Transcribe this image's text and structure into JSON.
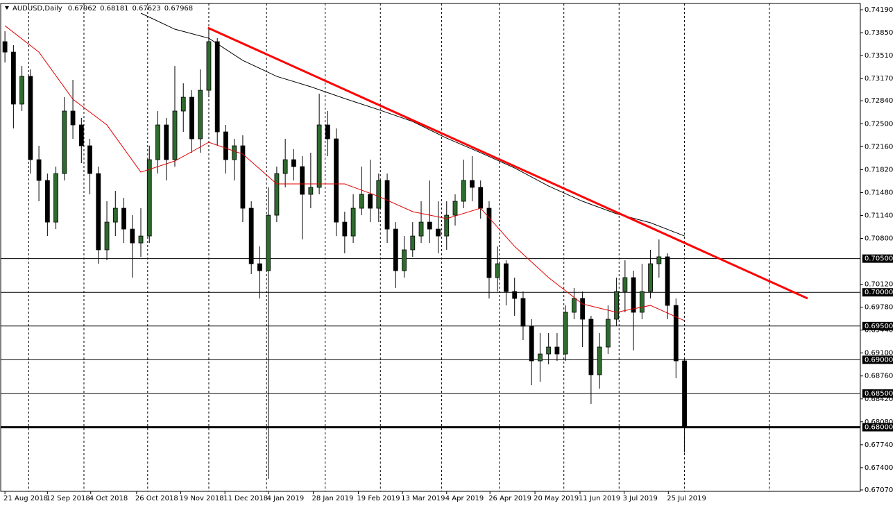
{
  "chart_data": {
    "type": "candlestick",
    "title": "AUDUSD,Daily",
    "current_ohlc": [
      0.67962,
      0.68181,
      0.67623,
      0.67968
    ],
    "up_color": "#2e6b2e",
    "down_color": "#000000",
    "x": [
      0,
      1,
      2,
      3,
      4,
      5,
      6,
      7,
      8,
      9,
      10,
      11,
      12,
      13,
      14,
      15,
      16,
      17,
      18,
      19,
      20,
      21,
      22,
      23,
      24,
      25,
      26,
      27,
      28,
      29,
      30,
      31,
      32,
      33,
      34,
      35,
      36,
      37,
      38,
      39,
      40,
      41,
      42,
      43,
      44,
      45,
      46,
      47,
      48,
      49,
      50,
      51,
      52,
      53,
      54,
      55,
      56,
      57,
      58,
      59,
      60,
      61,
      62,
      63,
      64,
      65,
      66,
      67,
      68,
      69,
      70,
      71,
      72,
      73,
      74,
      75,
      76,
      77,
      78,
      79,
      80
    ],
    "ohlc": [
      [
        0.73717,
        0.73871,
        0.73408,
        0.73562
      ],
      [
        0.73562,
        0.73665,
        0.7243,
        0.72791
      ],
      [
        0.72791,
        0.73356,
        0.72688,
        0.73202
      ],
      [
        0.73202,
        0.73305,
        0.71761,
        0.71967
      ],
      [
        0.71967,
        0.72173,
        0.7135,
        0.71659
      ],
      [
        0.71659,
        0.71761,
        0.70835,
        0.71041
      ],
      [
        0.71041,
        0.71864,
        0.70938,
        0.71761
      ],
      [
        0.71761,
        0.72893,
        0.71659,
        0.72688
      ],
      [
        0.72688,
        0.73151,
        0.72276,
        0.72482
      ],
      [
        0.72482,
        0.72585,
        0.71916,
        0.72173
      ],
      [
        0.72173,
        0.72276,
        0.71453,
        0.71761
      ],
      [
        0.71761,
        0.71864,
        0.70424,
        0.7063
      ],
      [
        0.7063,
        0.7135,
        0.70475,
        0.71041
      ],
      [
        0.71041,
        0.71504,
        0.70835,
        0.71247
      ],
      [
        0.71247,
        0.71401,
        0.70732,
        0.70938
      ],
      [
        0.70938,
        0.71144,
        0.70218,
        0.70732
      ],
      [
        0.70732,
        0.71247,
        0.70527,
        0.70835
      ],
      [
        0.70835,
        0.72173,
        0.70732,
        0.71967
      ],
      [
        0.71967,
        0.72688,
        0.71761,
        0.72482
      ],
      [
        0.72482,
        0.72585,
        0.71659,
        0.71967
      ],
      [
        0.71967,
        0.73356,
        0.71864,
        0.72688
      ],
      [
        0.72688,
        0.73099,
        0.72379,
        0.72893
      ],
      [
        0.72893,
        0.72996,
        0.7207,
        0.72276
      ],
      [
        0.72276,
        0.73305,
        0.7207,
        0.72996
      ],
      [
        0.72996,
        0.73922,
        0.72893,
        0.73717
      ],
      [
        0.73717,
        0.73768,
        0.72173,
        0.72379
      ],
      [
        0.72379,
        0.72482,
        0.71761,
        0.71967
      ],
      [
        0.71967,
        0.72276,
        0.71659,
        0.72173
      ],
      [
        0.72173,
        0.72328,
        0.71041,
        0.71247
      ],
      [
        0.71247,
        0.7135,
        0.7027,
        0.70424
      ],
      [
        0.70424,
        0.70681,
        0.69909,
        0.70321
      ],
      [
        0.70321,
        0.71556,
        0.67233,
        0.71144
      ],
      [
        0.71144,
        0.71864,
        0.71041,
        0.71761
      ],
      [
        0.71761,
        0.72276,
        0.71556,
        0.71967
      ],
      [
        0.71967,
        0.72122,
        0.71659,
        0.71864
      ],
      [
        0.71864,
        0.72019,
        0.70784,
        0.71453
      ],
      [
        0.71453,
        0.7207,
        0.71247,
        0.71556
      ],
      [
        0.71556,
        0.72945,
        0.71453,
        0.72482
      ],
      [
        0.72482,
        0.72688,
        0.72019,
        0.72276
      ],
      [
        0.72276,
        0.7243,
        0.70835,
        0.71041
      ],
      [
        0.71041,
        0.71196,
        0.70578,
        0.70835
      ],
      [
        0.70835,
        0.71453,
        0.70732,
        0.71247
      ],
      [
        0.71247,
        0.71864,
        0.71144,
        0.71453
      ],
      [
        0.71453,
        0.71967,
        0.71041,
        0.71247
      ],
      [
        0.71247,
        0.71761,
        0.71041,
        0.71659
      ],
      [
        0.71659,
        0.71761,
        0.70732,
        0.70938
      ],
      [
        0.70938,
        0.71041,
        0.70064,
        0.70321
      ],
      [
        0.70321,
        0.70835,
        0.70218,
        0.7063
      ],
      [
        0.7063,
        0.71041,
        0.70527,
        0.70835
      ],
      [
        0.70835,
        0.7135,
        0.70732,
        0.71041
      ],
      [
        0.71041,
        0.71659,
        0.70732,
        0.70938
      ],
      [
        0.70938,
        0.7135,
        0.70578,
        0.70835
      ],
      [
        0.70835,
        0.7135,
        0.7063,
        0.71144
      ],
      [
        0.71144,
        0.71453,
        0.7099,
        0.7135
      ],
      [
        0.7135,
        0.71967,
        0.71247,
        0.71659
      ],
      [
        0.71659,
        0.72019,
        0.7135,
        0.71556
      ],
      [
        0.71556,
        0.71659,
        0.71093,
        0.71247
      ],
      [
        0.71247,
        0.7135,
        0.69909,
        0.70218
      ],
      [
        0.70218,
        0.70681,
        0.70012,
        0.70424
      ],
      [
        0.70424,
        0.70475,
        0.69806,
        0.70012
      ],
      [
        0.70012,
        0.70218,
        0.69652,
        0.69909
      ],
      [
        0.69909,
        0.70012,
        0.69292,
        0.69498
      ],
      [
        0.69498,
        0.69601,
        0.68623,
        0.68983
      ],
      [
        0.68983,
        0.69395,
        0.68674,
        0.69086
      ],
      [
        0.69086,
        0.69395,
        0.68932,
        0.69189
      ],
      [
        0.69189,
        0.69395,
        0.68983,
        0.69086
      ],
      [
        0.69086,
        0.69806,
        0.68983,
        0.69704
      ],
      [
        0.69704,
        0.70064,
        0.69601,
        0.69909
      ],
      [
        0.69909,
        0.70012,
        0.69189,
        0.69601
      ],
      [
        0.69601,
        0.69652,
        0.68346,
        0.68778
      ],
      [
        0.68778,
        0.69395,
        0.68572,
        0.69189
      ],
      [
        0.69189,
        0.69806,
        0.69086,
        0.69601
      ],
      [
        0.69601,
        0.70218,
        0.69498,
        0.70012
      ],
      [
        0.70012,
        0.70475,
        0.69704,
        0.70218
      ],
      [
        0.70218,
        0.70321,
        0.69138,
        0.69704
      ],
      [
        0.69704,
        0.70424,
        0.69601,
        0.70012
      ],
      [
        0.70012,
        0.7063,
        0.69909,
        0.70424
      ],
      [
        0.70424,
        0.70784,
        0.70218,
        0.70527
      ],
      [
        0.70527,
        0.70578,
        0.69601,
        0.69806
      ],
      [
        0.69806,
        0.69909,
        0.68726,
        0.68983
      ],
      [
        0.68983,
        0.69035,
        0.67625,
        0.67995
      ]
    ],
    "lines": [
      {
        "x": [
          0,
          4,
          8,
          12,
          16,
          20,
          24,
          28,
          32,
          36,
          40,
          44,
          48,
          52,
          56,
          60,
          64,
          68,
          72,
          76,
          80
        ],
        "values": [
          0.73953,
          0.73562,
          0.72863,
          0.72482,
          0.71782,
          0.71947,
          0.72225,
          0.7205,
          0.71607,
          0.71607,
          0.71607,
          0.71422,
          0.71196,
          0.71093,
          0.71247,
          0.70681,
          0.70218,
          0.69827,
          0.69704,
          0.69806,
          0.6958
        ],
        "color": "#e00000",
        "width": 1
      },
      {
        "x": [
          16,
          20,
          24,
          28,
          32,
          36,
          40,
          44,
          48,
          52,
          56,
          60,
          64,
          68,
          72,
          76,
          80
        ],
        "values": [
          0.74139,
          0.73902,
          0.73768,
          0.73439,
          0.73202,
          0.73048,
          0.72873,
          0.72708,
          0.72533,
          0.72286,
          0.7207,
          0.71844,
          0.71576,
          0.7135,
          0.71165,
          0.71031,
          0.70835
        ],
        "color": "#000000",
        "width": 1
      },
      {
        "x": [
          23.9,
          94.5
        ],
        "values": [
          0.73922,
          0.69909
        ],
        "color": "#ff0000",
        "width": 3
      }
    ],
    "levels": [
      {
        "value": 0.705,
        "label": "0.70500",
        "width": 1
      },
      {
        "value": 0.7,
        "label": "0.70000",
        "width": 1
      },
      {
        "value": 0.695,
        "label": "0.69500",
        "width": 1
      },
      {
        "value": 0.69,
        "label": "0.69000",
        "width": 1
      },
      {
        "value": 0.685,
        "label": "0.68500",
        "width": 1
      },
      {
        "value": 0.68,
        "label": "0.68000",
        "width": 3
      }
    ],
    "xlim": [
      -0.5,
      100.7
    ],
    "ylim": [
      0.67049,
      0.74283
    ],
    "yticks": [
      {
        "value": 0.7419,
        "label": "0.74190"
      },
      {
        "value": 0.7385,
        "label": "0.73850"
      },
      {
        "value": 0.7351,
        "label": "0.73510"
      },
      {
        "value": 0.7317,
        "label": "0.73170"
      },
      {
        "value": 0.7284,
        "label": "0.72840"
      },
      {
        "value": 0.725,
        "label": "0.72500"
      },
      {
        "value": 0.7216,
        "label": "0.72160"
      },
      {
        "value": 0.7182,
        "label": "0.71820"
      },
      {
        "value": 0.7148,
        "label": "0.71480"
      },
      {
        "value": 0.7114,
        "label": "0.71140"
      },
      {
        "value": 0.708,
        "label": "0.70800"
      },
      {
        "value": 0.7012,
        "label": "0.70120"
      },
      {
        "value": 0.6978,
        "label": "0.69780"
      },
      {
        "value": 0.6944,
        "label": "0.69440"
      },
      {
        "value": 0.691,
        "label": "0.69100"
      },
      {
        "value": 0.6876,
        "label": "0.68760"
      },
      {
        "value": 0.6842,
        "label": "0.68420"
      },
      {
        "value": 0.6808,
        "label": "0.68080"
      },
      {
        "value": 0.6774,
        "label": "0.67740"
      },
      {
        "value": 0.674,
        "label": "0.67400"
      },
      {
        "value": 0.6707,
        "label": "0.67070"
      }
    ],
    "xticks": [
      {
        "value": 0,
        "label": "21 Aug 2018"
      },
      {
        "value": 5,
        "label": "12 Sep 2018"
      },
      {
        "value": 10.1,
        "label": "4 Oct 2018"
      },
      {
        "value": 15.5,
        "label": "26 Oct 2018"
      },
      {
        "value": 20.7,
        "label": "19 Nov 2018"
      },
      {
        "value": 25.9,
        "label": "11 Dec 2018"
      },
      {
        "value": 31,
        "label": "4 Jan 2019"
      },
      {
        "value": 36.3,
        "label": "28 Jan 2019"
      },
      {
        "value": 41.6,
        "label": "19 Feb 2019"
      },
      {
        "value": 46.8,
        "label": "13 Mar 2019"
      },
      {
        "value": 52,
        "label": "4 Apr 2019"
      },
      {
        "value": 57.1,
        "label": "26 Apr 2019"
      },
      {
        "value": 62.4,
        "label": "20 May 2019"
      },
      {
        "value": 67.7,
        "label": "11 Jun 2019"
      },
      {
        "value": 72.9,
        "label": "3 Jul 2019"
      },
      {
        "value": 78.1,
        "label": "25 Jul 2019"
      }
    ],
    "xgrid": [
      2.8,
      9.3,
      16.8,
      24,
      30.8,
      37.7,
      44.2,
      51.4,
      58.2,
      65.8,
      72.3,
      80,
      90
    ]
  }
}
